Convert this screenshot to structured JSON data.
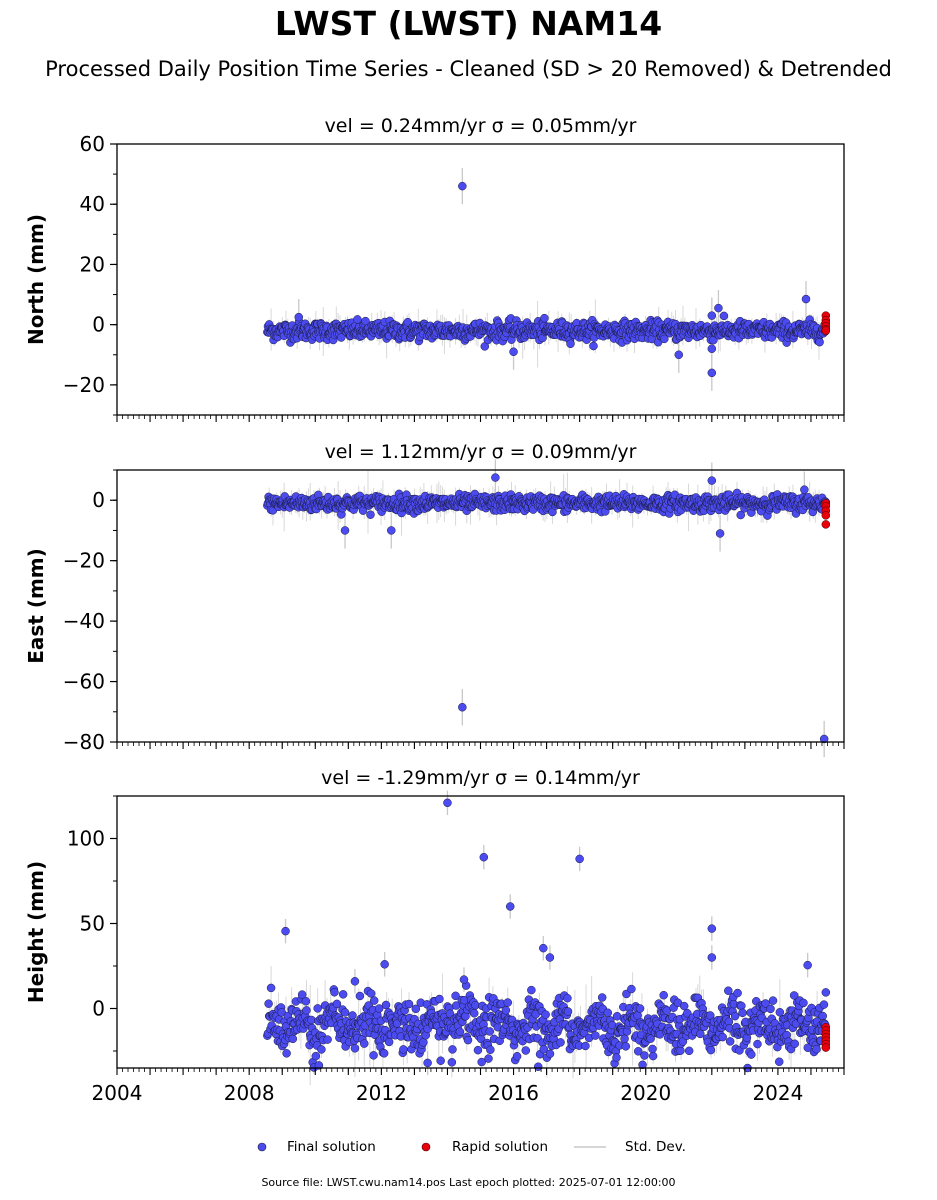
{
  "figure": {
    "title": "LWST (LWST) NAM14",
    "subtitle": "Processed Daily Position Time Series - Cleaned (SD > 20 Removed) & Detrended",
    "footer": "Source file: LWST.cwu.nam14.pos  Last epoch plotted: 2025-07-01 12:00:00"
  },
  "legend": {
    "final": "Final solution",
    "rapid": "Rapid solution",
    "std": "Std. Dev."
  },
  "colors": {
    "final": "#4b4bf0",
    "rapid": "#e8000b",
    "errorbar": "#c8c8c8",
    "point_edge": "#1a1a40"
  },
  "chart_data": [
    {
      "type": "scatter",
      "panel": "north",
      "title": "vel = 0.24mm/yr   σ = 0.05mm/yr",
      "ylabel": "North (mm)",
      "xlim": [
        2004,
        2026
      ],
      "ylim": [
        -30,
        60
      ],
      "yticks": [
        -20,
        0,
        20,
        40,
        60
      ],
      "xticks": [
        2004,
        2008,
        2012,
        2016,
        2020,
        2024
      ],
      "x_range_data": [
        2008.55,
        2025.45
      ],
      "baseline": {
        "level": -2,
        "scatter": 1.5
      },
      "outliers": [
        [
          2014.45,
          46
        ],
        [
          2009.5,
          2.5
        ],
        [
          2016.0,
          -9
        ],
        [
          2021.0,
          -10
        ],
        [
          2022.0,
          3
        ],
        [
          2022.0,
          -8
        ],
        [
          2022.0,
          -16
        ],
        [
          2022.2,
          5.5
        ],
        [
          2024.85,
          8.5
        ]
      ],
      "rapid": {
        "x": 2025.45,
        "y": [
          3,
          1.5,
          0.5,
          -0.5,
          -1.5,
          -2
        ]
      }
    },
    {
      "type": "scatter",
      "panel": "east",
      "title": "vel = 1.12mm/yr   σ = 0.09mm/yr",
      "ylabel": "East (mm)",
      "xlim": [
        2004,
        2026
      ],
      "ylim": [
        -80,
        10
      ],
      "yticks": [
        -80,
        -60,
        -40,
        -20,
        0
      ],
      "xticks": [
        2004,
        2008,
        2012,
        2016,
        2020,
        2024
      ],
      "x_range_data": [
        2008.55,
        2025.45
      ],
      "baseline": {
        "level": -1,
        "scatter": 1.3
      },
      "outliers": [
        [
          2014.45,
          -68.5
        ],
        [
          2025.4,
          -79
        ],
        [
          2012.3,
          -10
        ],
        [
          2015.45,
          7.5
        ],
        [
          2022.0,
          6.5
        ],
        [
          2022.25,
          -11
        ],
        [
          2010.9,
          -10
        ],
        [
          2024.8,
          3.5
        ]
      ],
      "rapid": {
        "x": 2025.45,
        "y": [
          -1,
          -2,
          -3.5,
          -5,
          -8
        ]
      }
    },
    {
      "type": "scatter",
      "panel": "height",
      "title": "vel = -1.29mm/yr   σ = 0.14mm/yr",
      "ylabel": "Height (mm)",
      "xlim": [
        2004,
        2026
      ],
      "ylim": [
        -35,
        125
      ],
      "yticks": [
        0,
        50,
        100
      ],
      "xticks": [
        2004,
        2008,
        2012,
        2016,
        2020,
        2024
      ],
      "x_range_data": [
        2008.55,
        2025.45
      ],
      "baseline": {
        "level": -10,
        "scatter": 7,
        "seasonal": 10
      },
      "outliers": [
        [
          2014.0,
          121
        ],
        [
          2015.1,
          89
        ],
        [
          2018.0,
          88
        ],
        [
          2015.9,
          60
        ],
        [
          2009.1,
          45.5
        ],
        [
          2012.1,
          26
        ],
        [
          2014.5,
          17
        ],
        [
          2016.9,
          35.5
        ],
        [
          2017.1,
          30
        ],
        [
          2022.0,
          47
        ],
        [
          2022.0,
          30
        ],
        [
          2024.9,
          25.5
        ],
        [
          2013.4,
          -32
        ],
        [
          2011.2,
          16
        ]
      ],
      "rapid": {
        "x": 2025.45,
        "y": [
          -11,
          -13,
          -15,
          -17,
          -19,
          -21,
          -23
        ]
      }
    }
  ]
}
